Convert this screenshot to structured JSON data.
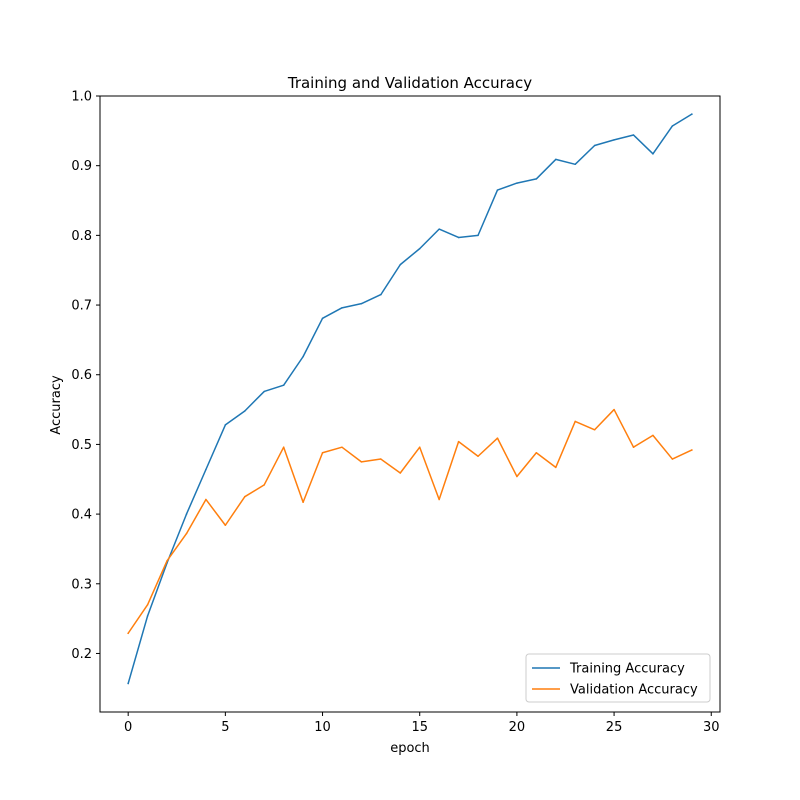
{
  "chart_data": {
    "type": "line",
    "title": "Training and Validation Accuracy",
    "xlabel": "epoch",
    "ylabel": "Accuracy",
    "xlim": [
      -1.45,
      30.45
    ],
    "ylim": [
      0.116,
      1.0
    ],
    "xticks": [
      0,
      5,
      10,
      15,
      20,
      25,
      30
    ],
    "yticks": [
      0.2,
      0.3,
      0.4,
      0.5,
      0.6,
      0.7,
      0.8,
      0.9,
      1.0
    ],
    "grid": false,
    "legend_position": "lower-right",
    "x": [
      0,
      1,
      2,
      3,
      4,
      5,
      6,
      7,
      8,
      9,
      10,
      11,
      12,
      13,
      14,
      15,
      16,
      17,
      18,
      19,
      20,
      21,
      22,
      23,
      24,
      25,
      26,
      27,
      28,
      29
    ],
    "series": [
      {
        "name": "Training Accuracy",
        "color": "#1f77b4",
        "values": [
          0.157,
          0.254,
          0.33,
          0.4,
          0.464,
          0.528,
          0.548,
          0.576,
          0.585,
          0.626,
          0.681,
          0.696,
          0.702,
          0.715,
          0.758,
          0.781,
          0.809,
          0.797,
          0.8,
          0.865,
          0.875,
          0.881,
          0.909,
          0.902,
          0.929,
          0.937,
          0.944,
          0.917,
          0.957,
          0.974
        ]
      },
      {
        "name": "Validation Accuracy",
        "color": "#ff7f0e",
        "values": [
          0.229,
          0.27,
          0.333,
          0.372,
          0.421,
          0.384,
          0.425,
          0.442,
          0.496,
          0.417,
          0.488,
          0.496,
          0.475,
          0.479,
          0.459,
          0.496,
          0.421,
          0.504,
          0.483,
          0.509,
          0.454,
          0.488,
          0.467,
          0.533,
          0.521,
          0.55,
          0.496,
          0.513,
          0.479,
          0.492
        ]
      }
    ]
  }
}
